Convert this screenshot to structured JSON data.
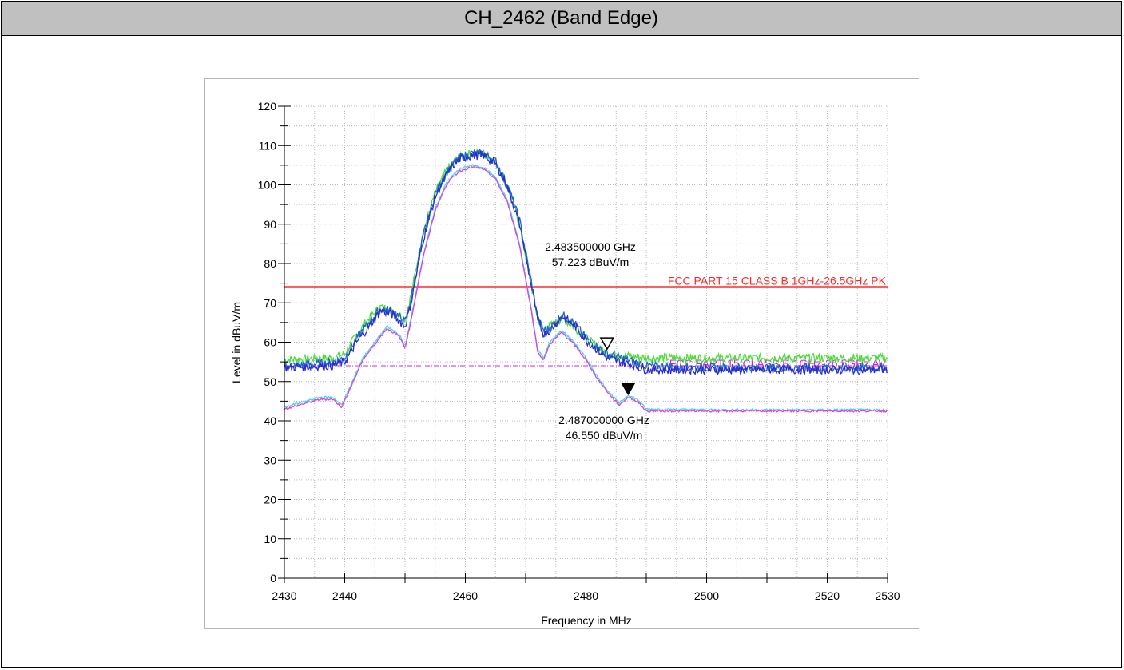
{
  "header": {
    "title": "CH_2462 (Band Edge)"
  },
  "colors": {
    "peak_green": "#4ddc3c",
    "peak_blue": "#2b2bd6",
    "peak_teal": "#1a6ac0",
    "avg_magenta": "#e040e0",
    "avg_cyan": "#3fd8e8",
    "limit_pk": "#ff2a2a",
    "limit_av": "#d02ad0",
    "grid": "#b8b8b8"
  },
  "chart_data": {
    "type": "line",
    "xlabel": "Frequency in MHz",
    "ylabel": "Level in dBuV/m",
    "xlim": [
      2430,
      2530
    ],
    "ylim": [
      0,
      120
    ],
    "x_ticks": [
      2430,
      2440,
      2460,
      2480,
      2500,
      2520,
      2530
    ],
    "y_ticks": [
      0,
      10,
      20,
      30,
      40,
      50,
      60,
      70,
      80,
      90,
      100,
      110,
      120
    ],
    "grid": true,
    "limits": [
      {
        "name": "FCC PART 15 CLASS B 1GHz-26.5GHz PK",
        "value": 74,
        "style": "solid"
      },
      {
        "name": "FCC PART 15 CLASS B 1GHz-26.5GHz AV",
        "value": 54,
        "style": "dashdot"
      }
    ],
    "markers": [
      {
        "x": 2483.5,
        "y": 57.223,
        "label_freq": "2.483500000 GHz",
        "label_level": "57.223 dBuV/m",
        "shape": "open-triangle"
      },
      {
        "x": 2487.0,
        "y": 46.55,
        "label_freq": "2.487000000 GHz",
        "label_level": "46.550 dBuV/m",
        "shape": "filled-triangle"
      }
    ],
    "series": [
      {
        "kind": "peak",
        "color_key": "peak_green",
        "x": [
          2430,
          2436,
          2438,
          2440,
          2442,
          2444,
          2446,
          2448,
          2450,
          2451,
          2453,
          2455,
          2457,
          2459,
          2461,
          2463,
          2465,
          2467,
          2469,
          2471,
          2472,
          2473,
          2474,
          2476,
          2478,
          2480,
          2483.5,
          2487,
          2490,
          2500,
          2510,
          2520,
          2530
        ],
        "y": [
          55.5,
          56,
          56,
          57,
          62,
          66,
          69,
          68,
          66,
          72,
          88,
          98,
          104,
          107,
          108,
          108,
          106,
          100,
          90,
          74,
          66,
          63,
          64,
          66,
          64,
          61,
          57.2,
          56.5,
          56,
          56,
          56,
          56,
          56
        ]
      },
      {
        "kind": "peak",
        "color_key": "peak_teal",
        "x": [
          2430,
          2436,
          2438,
          2440,
          2442,
          2444,
          2446,
          2448,
          2450,
          2451,
          2453,
          2455,
          2457,
          2459,
          2461,
          2463,
          2465,
          2467,
          2469,
          2471,
          2472,
          2473,
          2474,
          2476,
          2478,
          2480,
          2483.5,
          2487,
          2490,
          2500,
          2510,
          2520,
          2530
        ],
        "y": [
          54,
          54.5,
          55,
          56,
          61,
          65,
          68.5,
          68,
          65,
          71,
          87,
          97.5,
          103.5,
          107,
          108,
          108,
          106,
          100,
          91,
          75,
          66,
          63,
          63.5,
          67,
          65,
          61,
          57,
          55.5,
          54,
          53.5,
          53.5,
          53.5,
          53.5
        ]
      },
      {
        "kind": "peak",
        "color_key": "peak_blue",
        "x": [
          2430,
          2436,
          2438,
          2440,
          2442,
          2444,
          2446,
          2448,
          2450,
          2451,
          2453,
          2455,
          2457,
          2459,
          2461,
          2463,
          2465,
          2467,
          2469,
          2471,
          2472,
          2473,
          2474,
          2476,
          2478,
          2480,
          2483.5,
          2487,
          2490,
          2500,
          2510,
          2520,
          2530
        ],
        "y": [
          53.5,
          54,
          54,
          55,
          60,
          64,
          68,
          67,
          64,
          70,
          86,
          97,
          103,
          106.5,
          107.5,
          107.5,
          105.5,
          99.5,
          90,
          74,
          65.5,
          62,
          63,
          66.5,
          64.5,
          60.5,
          56,
          54.5,
          53,
          53,
          53,
          53,
          53
        ]
      },
      {
        "kind": "average",
        "color_key": "avg_cyan",
        "x": [
          2430,
          2436,
          2438,
          2439.5,
          2441,
          2443,
          2445,
          2447,
          2449,
          2450,
          2451,
          2453,
          2455,
          2457,
          2459,
          2461,
          2463,
          2465,
          2467,
          2469,
          2471,
          2472,
          2473,
          2474,
          2476,
          2478,
          2480,
          2482,
          2484,
          2485.5,
          2487,
          2488.5,
          2490,
          2500,
          2510,
          2520,
          2530
        ],
        "y": [
          43.5,
          46,
          46,
          44,
          49,
          56,
          60,
          64,
          62,
          59,
          66,
          82,
          94,
          101,
          104,
          105,
          104.5,
          102,
          96,
          85,
          68,
          58,
          56,
          60,
          63,
          60,
          56,
          51,
          47,
          44.5,
          46.5,
          45.5,
          43,
          42.8,
          42.8,
          42.8,
          42.8
        ]
      },
      {
        "kind": "average",
        "color_key": "avg_magenta",
        "x": [
          2430,
          2436,
          2438,
          2439.5,
          2441,
          2443,
          2445,
          2447,
          2449,
          2450,
          2451,
          2453,
          2455,
          2457,
          2459,
          2461,
          2463,
          2465,
          2467,
          2469,
          2471,
          2472,
          2473,
          2474,
          2476,
          2478,
          2480,
          2482,
          2484,
          2485.5,
          2487,
          2488.5,
          2490,
          2500,
          2510,
          2520,
          2530
        ],
        "y": [
          43,
          45.5,
          45.5,
          43.5,
          48.5,
          55.5,
          59.5,
          63.5,
          61.5,
          58.5,
          65.5,
          81.5,
          93.5,
          100.5,
          103.5,
          104.5,
          104,
          101.5,
          95.5,
          84.5,
          67.5,
          57.5,
          55.5,
          59.5,
          62.5,
          59.5,
          55.5,
          50.5,
          46.5,
          44,
          46,
          45,
          42.5,
          42.5,
          42.5,
          42.5,
          42.5
        ]
      }
    ]
  }
}
